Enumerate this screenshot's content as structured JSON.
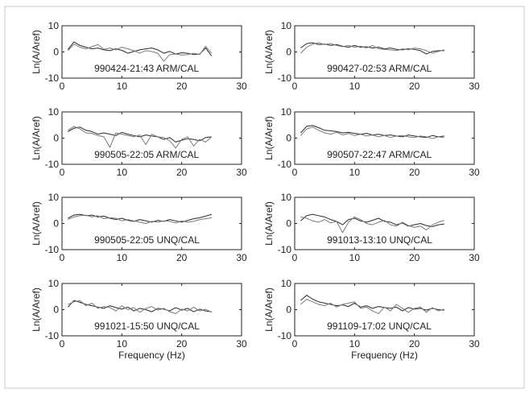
{
  "chart_data": [
    {
      "type": "line",
      "title": "",
      "annotation": "990424-21:43 ARM/CAL",
      "ylabel": "Ln(A/Aref)",
      "xlabel": "",
      "xlim": [
        0,
        30
      ],
      "ylim": [
        -10,
        10
      ],
      "xticks": [
        0,
        10,
        20,
        30
      ],
      "yticks": [
        -10,
        0,
        10
      ],
      "series": [
        {
          "x": [
            1,
            2,
            3,
            4,
            5,
            6,
            7,
            8,
            9,
            10,
            11,
            12,
            13,
            14,
            15,
            16,
            17,
            18,
            19,
            20,
            21,
            22,
            23,
            24,
            25
          ],
          "values": [
            1.0,
            3.8,
            2.5,
            1.8,
            1.2,
            1.5,
            0.8,
            0.5,
            1.2,
            0.6,
            -0.5,
            0.2,
            0.8,
            1.2,
            1.5,
            0.8,
            -0.5,
            0.2,
            -0.8,
            -0.3,
            -0.5,
            -1.0,
            -0.8,
            1.5,
            -1.5
          ]
        },
        {
          "x": [
            1,
            2,
            3,
            4,
            5,
            6,
            7,
            8,
            9,
            10,
            11,
            12,
            13,
            14,
            15,
            16,
            17,
            18,
            19,
            20,
            21,
            22,
            23,
            24,
            25
          ],
          "values": [
            0.5,
            3.0,
            1.8,
            1.2,
            2.0,
            2.8,
            1.0,
            1.5,
            0.8,
            1.8,
            1.2,
            0.5,
            -0.5,
            0.5,
            0.2,
            -0.5,
            -3.5,
            -1.0,
            -0.8,
            -1.2,
            -1.0,
            -0.5,
            -1.0,
            2.2,
            -0.5
          ]
        }
      ]
    },
    {
      "type": "line",
      "title": "",
      "annotation": "990427-02:53 ARM/CAL",
      "ylabel": "Ln(A/Aref)",
      "xlabel": "",
      "xlim": [
        0,
        30
      ],
      "ylim": [
        -10,
        10
      ],
      "xticks": [
        0,
        10,
        20,
        30
      ],
      "yticks": [
        -10,
        0,
        10
      ],
      "series": [
        {
          "x": [
            1,
            2,
            3,
            4,
            5,
            6,
            7,
            8,
            9,
            10,
            11,
            12,
            13,
            14,
            15,
            16,
            17,
            18,
            19,
            20,
            21,
            22,
            23,
            24,
            25
          ],
          "values": [
            1.5,
            3.2,
            3.5,
            2.8,
            3.0,
            2.5,
            2.8,
            2.2,
            1.8,
            2.5,
            1.8,
            2.0,
            1.5,
            1.8,
            1.2,
            1.5,
            1.0,
            0.8,
            1.2,
            1.0,
            0.5,
            -0.8,
            0.2,
            0.5,
            0.5
          ]
        },
        {
          "x": [
            1,
            2,
            3,
            4,
            5,
            6,
            7,
            8,
            9,
            10,
            11,
            12,
            13,
            14,
            15,
            16,
            17,
            18,
            19,
            20,
            21,
            22,
            23,
            24,
            25
          ],
          "values": [
            -0.5,
            1.8,
            3.0,
            3.5,
            2.8,
            3.2,
            2.5,
            2.0,
            2.5,
            1.8,
            2.2,
            1.5,
            2.5,
            1.2,
            1.0,
            0.8,
            0.5,
            1.2,
            0.8,
            1.5,
            1.2,
            0.5,
            -0.5,
            0.2,
            0.8
          ]
        }
      ]
    },
    {
      "type": "line",
      "title": "",
      "annotation": "990505-22:05 ARM/CAL",
      "ylabel": "Ln(A/Aref)",
      "xlabel": "",
      "xlim": [
        0,
        30
      ],
      "ylim": [
        -10,
        10
      ],
      "xticks": [
        0,
        10,
        20,
        30
      ],
      "yticks": [
        -10,
        0,
        10
      ],
      "series": [
        {
          "x": [
            1,
            2,
            3,
            4,
            5,
            6,
            7,
            8,
            9,
            10,
            11,
            12,
            13,
            14,
            15,
            16,
            17,
            18,
            19,
            20,
            21,
            22,
            23,
            24,
            25
          ],
          "values": [
            2.5,
            3.8,
            4.2,
            3.0,
            2.5,
            1.5,
            2.0,
            1.5,
            1.0,
            2.2,
            1.5,
            1.0,
            0.5,
            1.2,
            0.8,
            0.5,
            -0.5,
            0.2,
            -1.5,
            -0.8,
            -0.2,
            -0.5,
            -1.0,
            0.2,
            0.5
          ]
        },
        {
          "x": [
            1,
            2,
            3,
            4,
            5,
            6,
            7,
            8,
            9,
            10,
            11,
            12,
            13,
            14,
            15,
            16,
            17,
            18,
            19,
            20,
            21,
            22,
            23,
            24,
            25
          ],
          "values": [
            3.0,
            4.5,
            3.5,
            2.0,
            1.8,
            1.0,
            0.5,
            -3.5,
            2.0,
            1.5,
            1.0,
            0.5,
            1.2,
            -2.5,
            1.5,
            0.5,
            0.2,
            -1.0,
            -3.8,
            -0.5,
            0.5,
            -3.0,
            -0.5,
            -1.5,
            0.5
          ]
        }
      ]
    },
    {
      "type": "line",
      "title": "",
      "annotation": "990507-22:47 ARM/CAL",
      "ylabel": "Ln(A/Aref)",
      "xlabel": "",
      "xlim": [
        0,
        30
      ],
      "ylim": [
        -10,
        10
      ],
      "xticks": [
        0,
        10,
        20,
        30
      ],
      "yticks": [
        -10,
        0,
        10
      ],
      "series": [
        {
          "x": [
            1,
            2,
            3,
            4,
            5,
            6,
            7,
            8,
            9,
            10,
            11,
            12,
            13,
            14,
            15,
            16,
            17,
            18,
            19,
            20,
            21,
            22,
            23,
            24,
            25
          ],
          "values": [
            2.0,
            4.5,
            4.8,
            4.0,
            3.0,
            2.8,
            2.5,
            2.0,
            2.2,
            1.8,
            1.5,
            1.8,
            1.2,
            1.5,
            1.0,
            1.2,
            0.8,
            0.5,
            1.2,
            0.8,
            0.5,
            0.2,
            1.0,
            0.5,
            0.8
          ]
        },
        {
          "x": [
            1,
            2,
            3,
            4,
            5,
            6,
            7,
            8,
            9,
            10,
            11,
            12,
            13,
            14,
            15,
            16,
            17,
            18,
            19,
            20,
            21,
            22,
            23,
            24,
            25
          ],
          "values": [
            1.0,
            3.5,
            4.2,
            3.0,
            2.0,
            1.5,
            2.2,
            1.2,
            1.8,
            1.0,
            1.5,
            0.8,
            1.2,
            0.5,
            1.0,
            0.2,
            0.8,
            1.0,
            0.5,
            0.2,
            0.8,
            0.5,
            -0.2,
            0.5,
            0.2
          ]
        }
      ]
    },
    {
      "type": "line",
      "title": "",
      "annotation": "990505-22:05 UNQ/CAL",
      "ylabel": "Ln(A/Aref)",
      "xlabel": "",
      "xlim": [
        0,
        30
      ],
      "ylim": [
        -10,
        10
      ],
      "xticks": [
        0,
        10,
        20,
        30
      ],
      "yticks": [
        -10,
        0,
        10
      ],
      "series": [
        {
          "x": [
            1,
            2,
            3,
            4,
            5,
            6,
            7,
            8,
            9,
            10,
            11,
            12,
            13,
            14,
            15,
            16,
            17,
            18,
            19,
            20,
            21,
            22,
            23,
            24,
            25
          ],
          "values": [
            2.0,
            3.2,
            3.5,
            3.0,
            3.2,
            2.5,
            2.8,
            2.0,
            1.5,
            2.0,
            1.2,
            0.8,
            1.5,
            1.0,
            0.5,
            1.2,
            0.8,
            1.5,
            1.0,
            0.5,
            1.2,
            1.8,
            2.2,
            2.8,
            3.5
          ]
        },
        {
          "x": [
            1,
            2,
            3,
            4,
            5,
            6,
            7,
            8,
            9,
            10,
            11,
            12,
            13,
            14,
            15,
            16,
            17,
            18,
            19,
            20,
            21,
            22,
            23,
            24,
            25
          ],
          "values": [
            1.5,
            2.5,
            3.0,
            3.2,
            2.5,
            3.0,
            1.8,
            2.2,
            2.0,
            1.0,
            1.5,
            1.0,
            0.5,
            0.0,
            0.8,
            0.5,
            1.0,
            0.8,
            0.2,
            1.0,
            0.5,
            0.8,
            1.5,
            1.8,
            2.2
          ]
        }
      ]
    },
    {
      "type": "line",
      "title": "",
      "annotation": "991013-13:10 UNQ/CAL",
      "ylabel": "Ln(A/Aref)",
      "xlabel": "",
      "xlim": [
        0,
        30
      ],
      "ylim": [
        -10,
        10
      ],
      "xticks": [
        0,
        10,
        20,
        30
      ],
      "yticks": [
        -10,
        0,
        10
      ],
      "series": [
        {
          "x": [
            1,
            2,
            3,
            4,
            5,
            6,
            7,
            8,
            9,
            10,
            11,
            12,
            13,
            14,
            15,
            16,
            17,
            18,
            19,
            20,
            21,
            22,
            23,
            24,
            25
          ],
          "values": [
            1.0,
            3.0,
            3.5,
            3.0,
            2.5,
            1.5,
            0.8,
            -0.5,
            1.5,
            2.0,
            1.0,
            0.5,
            1.2,
            2.0,
            0.8,
            0.5,
            -0.5,
            0.2,
            -1.0,
            -0.5,
            0.0,
            -0.8,
            -1.2,
            -0.5,
            -0.2
          ]
        },
        {
          "x": [
            1,
            2,
            3,
            4,
            5,
            6,
            7,
            8,
            9,
            10,
            11,
            12,
            13,
            14,
            15,
            16,
            17,
            18,
            19,
            20,
            21,
            22,
            23,
            24,
            25
          ],
          "values": [
            2.5,
            2.0,
            1.0,
            0.5,
            1.5,
            0.2,
            0.8,
            -3.5,
            0.5,
            2.5,
            1.5,
            0.0,
            -0.5,
            0.5,
            1.2,
            -0.5,
            -1.0,
            0.5,
            -0.8,
            -1.5,
            -1.0,
            -2.5,
            -0.5,
            0.5,
            1.2
          ]
        }
      ]
    },
    {
      "type": "line",
      "title": "",
      "annotation": "991021-15:50 UNQ/CAL",
      "ylabel": "Ln(A/Aref)",
      "xlabel": "Frequency (Hz)",
      "xlim": [
        0,
        30
      ],
      "ylim": [
        -10,
        10
      ],
      "xticks": [
        0,
        10,
        20,
        30
      ],
      "yticks": [
        -10,
        0,
        10
      ],
      "series": [
        {
          "x": [
            1,
            2,
            3,
            4,
            5,
            6,
            7,
            8,
            9,
            10,
            11,
            12,
            13,
            14,
            15,
            16,
            17,
            18,
            19,
            20,
            21,
            22,
            23,
            24,
            25
          ],
          "values": [
            1.0,
            3.5,
            2.8,
            2.0,
            1.5,
            1.0,
            0.5,
            1.5,
            0.8,
            0.2,
            1.0,
            -0.5,
            0.5,
            0.0,
            -0.8,
            0.5,
            0.2,
            -0.5,
            0.8,
            -0.2,
            0.5,
            -0.8,
            0.2,
            -0.5,
            -0.8
          ]
        },
        {
          "x": [
            1,
            2,
            3,
            4,
            5,
            6,
            7,
            8,
            9,
            10,
            11,
            12,
            13,
            14,
            15,
            16,
            17,
            18,
            19,
            20,
            21,
            22,
            23,
            24,
            25
          ],
          "values": [
            2.0,
            3.0,
            3.5,
            1.5,
            2.5,
            0.5,
            1.2,
            0.8,
            -0.5,
            1.5,
            0.0,
            0.8,
            -1.0,
            0.5,
            1.2,
            -0.2,
            0.5,
            -0.8,
            -1.5,
            0.2,
            -0.5,
            1.0,
            -0.5,
            0.2,
            -1.0
          ]
        }
      ]
    },
    {
      "type": "line",
      "title": "",
      "annotation": "991109-17:02 UNQ/CAL",
      "ylabel": "Ln(A/Aref)",
      "xlabel": "Frequency (Hz)",
      "xlim": [
        0,
        30
      ],
      "ylim": [
        -10,
        10
      ],
      "xticks": [
        0,
        10,
        20,
        30
      ],
      "yticks": [
        -10,
        0,
        10
      ],
      "series": [
        {
          "x": [
            1,
            2,
            3,
            4,
            5,
            6,
            7,
            8,
            9,
            10,
            11,
            12,
            13,
            14,
            15,
            16,
            17,
            18,
            19,
            20,
            21,
            22,
            23,
            24,
            25
          ],
          "values": [
            3.5,
            5.5,
            4.0,
            3.0,
            2.5,
            2.0,
            1.5,
            1.8,
            1.2,
            2.5,
            1.0,
            1.5,
            0.5,
            1.2,
            0.8,
            0.5,
            1.0,
            -0.5,
            0.8,
            0.2,
            0.5,
            -0.2,
            0.5,
            0.0,
            -0.2
          ]
        },
        {
          "x": [
            1,
            2,
            3,
            4,
            5,
            6,
            7,
            8,
            9,
            10,
            11,
            12,
            13,
            14,
            15,
            16,
            17,
            18,
            19,
            20,
            21,
            22,
            23,
            24,
            25
          ],
          "values": [
            2.0,
            4.0,
            3.0,
            2.0,
            1.5,
            2.5,
            1.0,
            2.0,
            2.5,
            3.0,
            0.5,
            1.0,
            -0.5,
            -1.5,
            1.0,
            -0.5,
            2.0,
            0.5,
            -1.0,
            0.5,
            1.0,
            -1.0,
            0.8,
            -0.5,
            0.2
          ]
        }
      ]
    }
  ],
  "colors": {
    "axis": "#222222",
    "series_1": "#2a2a2a",
    "series_2": "#7a7a7a"
  }
}
